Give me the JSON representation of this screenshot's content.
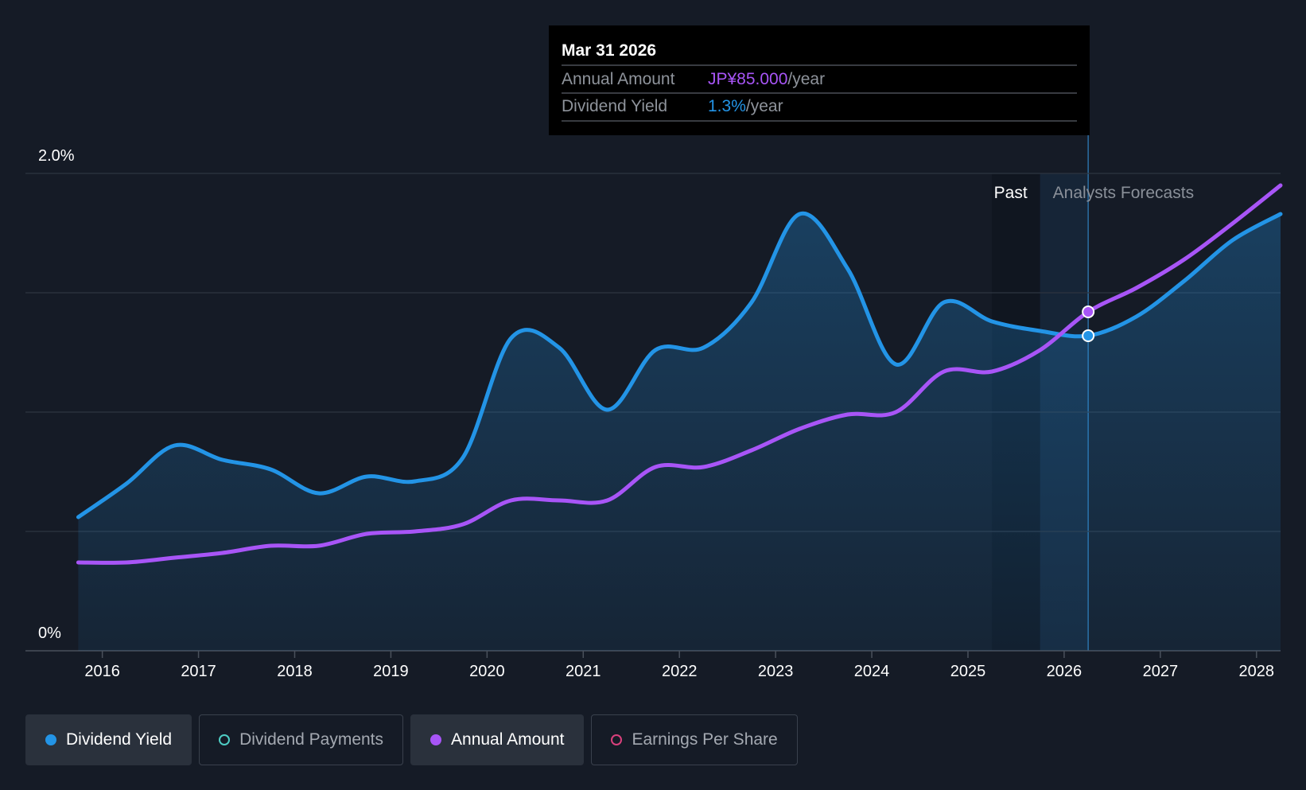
{
  "tooltip": {
    "date": "Mar 31 2026",
    "rows": [
      {
        "label": "Annual Amount",
        "value": "JP¥85.000",
        "suffix": "/year",
        "color": "#a855f7"
      },
      {
        "label": "Dividend Yield",
        "value": "1.3%",
        "suffix": "/year",
        "color": "#2394e6"
      }
    ]
  },
  "regions": {
    "past": "Past",
    "forecast": "Analysts Forecasts"
  },
  "legend": [
    {
      "label": "Dividend Yield",
      "color": "#2394e6",
      "active": true,
      "filled": true
    },
    {
      "label": "Dividend Payments",
      "color": "#4ecdc4",
      "active": false,
      "filled": false
    },
    {
      "label": "Annual Amount",
      "color": "#a855f7",
      "active": true,
      "filled": true
    },
    {
      "label": "Earnings Per Share",
      "color": "#d9407c",
      "active": false,
      "filled": false
    }
  ],
  "chart_data": {
    "type": "line",
    "title": "",
    "xlabel": "",
    "ylabel": "",
    "y_tick_labels": [
      "2.0%",
      "0%"
    ],
    "ylim": [
      0,
      2.0
    ],
    "xlim": [
      2015.73,
      2028.25
    ],
    "x_ticks": [
      2016,
      2017,
      2018,
      2019,
      2020,
      2021,
      2022,
      2023,
      2024,
      2025,
      2026,
      2027,
      2028
    ],
    "x_tick_labels": [
      "2016",
      "2017",
      "2018",
      "2019",
      "2020",
      "2021",
      "2022",
      "2023",
      "2024",
      "2025",
      "2026",
      "2027",
      "2028"
    ],
    "past_forecast_split": 2025.75,
    "highlight_start": 2025.25,
    "hover_x": 2026.25,
    "series": [
      {
        "name": "Dividend Yield",
        "unit": "%",
        "color": "#2394e6",
        "area": true,
        "points": [
          [
            2015.75,
            0.56
          ],
          [
            2016.25,
            0.7
          ],
          [
            2016.75,
            0.86
          ],
          [
            2017.25,
            0.8
          ],
          [
            2017.75,
            0.76
          ],
          [
            2018.25,
            0.66
          ],
          [
            2018.75,
            0.73
          ],
          [
            2019.25,
            0.71
          ],
          [
            2019.75,
            0.81
          ],
          [
            2020.25,
            1.31
          ],
          [
            2020.75,
            1.27
          ],
          [
            2021.25,
            1.01
          ],
          [
            2021.75,
            1.26
          ],
          [
            2022.25,
            1.27
          ],
          [
            2022.75,
            1.46
          ],
          [
            2023.25,
            1.83
          ],
          [
            2023.75,
            1.6
          ],
          [
            2024.25,
            1.2
          ],
          [
            2024.75,
            1.46
          ],
          [
            2025.25,
            1.38
          ],
          [
            2025.75,
            1.34
          ],
          [
            2026.25,
            1.32
          ],
          [
            2026.75,
            1.4
          ],
          [
            2027.25,
            1.55
          ],
          [
            2027.75,
            1.72
          ],
          [
            2028.25,
            1.83
          ]
        ],
        "hover_value": 1.32
      },
      {
        "name": "Annual Amount",
        "unit": "JP¥",
        "color": "#a855f7",
        "area": false,
        "points": [
          [
            2015.75,
            0.37
          ],
          [
            2016.25,
            0.37
          ],
          [
            2016.75,
            0.39
          ],
          [
            2017.25,
            0.41
          ],
          [
            2017.75,
            0.44
          ],
          [
            2018.25,
            0.44
          ],
          [
            2018.75,
            0.49
          ],
          [
            2019.25,
            0.5
          ],
          [
            2019.75,
            0.53
          ],
          [
            2020.25,
            0.63
          ],
          [
            2020.75,
            0.63
          ],
          [
            2021.25,
            0.63
          ],
          [
            2021.75,
            0.77
          ],
          [
            2022.25,
            0.77
          ],
          [
            2022.75,
            0.84
          ],
          [
            2023.25,
            0.93
          ],
          [
            2023.75,
            0.99
          ],
          [
            2024.25,
            1.0
          ],
          [
            2024.75,
            1.17
          ],
          [
            2025.25,
            1.17
          ],
          [
            2025.75,
            1.26
          ],
          [
            2026.25,
            1.42
          ],
          [
            2026.75,
            1.52
          ],
          [
            2027.25,
            1.64
          ],
          [
            2027.75,
            1.79
          ],
          [
            2028.25,
            1.95
          ]
        ],
        "hover_value": 1.42
      }
    ]
  }
}
